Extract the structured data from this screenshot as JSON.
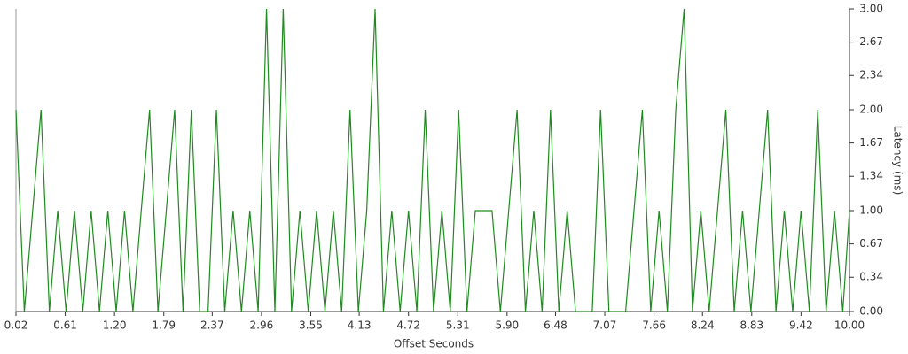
{
  "chart_data": {
    "type": "line",
    "x_label": "Offset Seconds",
    "y_label": "Latency (ms)",
    "x": [
      0.02,
      0.12,
      0.22,
      0.32,
      0.42,
      0.52,
      0.62,
      0.72,
      0.82,
      0.92,
      1.02,
      1.12,
      1.22,
      1.32,
      1.42,
      1.52,
      1.62,
      1.72,
      1.82,
      1.92,
      2.02,
      2.12,
      2.22,
      2.32,
      2.42,
      2.52,
      2.62,
      2.72,
      2.82,
      2.92,
      3.02,
      3.12,
      3.22,
      3.32,
      3.42,
      3.52,
      3.62,
      3.72,
      3.82,
      3.92,
      4.02,
      4.12,
      4.22,
      4.32,
      4.42,
      4.52,
      4.62,
      4.72,
      4.82,
      4.92,
      5.02,
      5.12,
      5.22,
      5.32,
      5.42,
      5.52,
      5.62,
      5.72,
      5.82,
      5.92,
      6.02,
      6.12,
      6.22,
      6.32,
      6.42,
      6.52,
      6.62,
      6.72,
      6.82,
      6.92,
      7.02,
      7.12,
      7.22,
      7.32,
      7.42,
      7.52,
      7.62,
      7.72,
      7.82,
      7.92,
      8.02,
      8.12,
      8.22,
      8.32,
      8.42,
      8.52,
      8.62,
      8.72,
      8.82,
      8.92,
      9.02,
      9.12,
      9.22,
      9.32,
      9.42,
      9.52,
      9.62,
      9.72,
      9.82,
      9.92,
      10
    ],
    "series": [
      {
        "name": "Latency",
        "color": "#1f8a1f",
        "values": [
          2,
          0,
          1,
          2,
          0,
          1,
          0,
          1,
          0,
          1,
          0,
          1,
          0,
          1,
          0,
          1,
          2,
          0,
          1,
          2,
          0,
          2,
          0,
          0,
          2,
          0,
          1,
          0,
          1,
          0,
          3,
          0,
          3,
          0,
          1,
          0,
          1,
          0,
          1,
          0,
          2,
          0,
          1,
          3,
          0,
          1,
          0,
          1,
          0,
          2,
          0,
          1,
          0,
          2,
          0,
          1,
          1,
          1,
          0,
          1,
          2,
          0,
          1,
          0,
          2,
          0,
          1,
          0,
          0,
          0,
          2,
          0,
          0,
          0,
          1,
          2,
          0,
          1,
          0,
          2,
          3,
          0,
          1,
          0,
          1,
          2,
          0,
          1,
          0,
          1,
          2,
          0,
          1,
          0,
          1,
          0,
          2,
          0,
          1,
          0,
          1
        ]
      }
    ],
    "xlim": [
      0.02,
      10
    ],
    "xticks": [
      0.02,
      0.61,
      {
        "value": 1.2,
        "label": "1.20"
      },
      1.79,
      2.37,
      2.96,
      3.55,
      4.13,
      4.72,
      5.31,
      {
        "value": 5.9,
        "label": "5.90"
      },
      6.48,
      7.07,
      7.66,
      8.24,
      8.83,
      9.42,
      {
        "value": 10,
        "label": "10.00"
      }
    ],
    "ylim": [
      0,
      3
    ],
    "yticks": [
      {
        "value": 0,
        "label": "0.00"
      },
      0.34,
      0.67,
      {
        "value": 1,
        "label": "1.00"
      },
      1.34,
      1.67,
      {
        "value": 2,
        "label": "2.00"
      },
      2.34,
      2.67,
      {
        "value": 3,
        "label": "3.00"
      }
    ],
    "y_axis_side": "right"
  }
}
